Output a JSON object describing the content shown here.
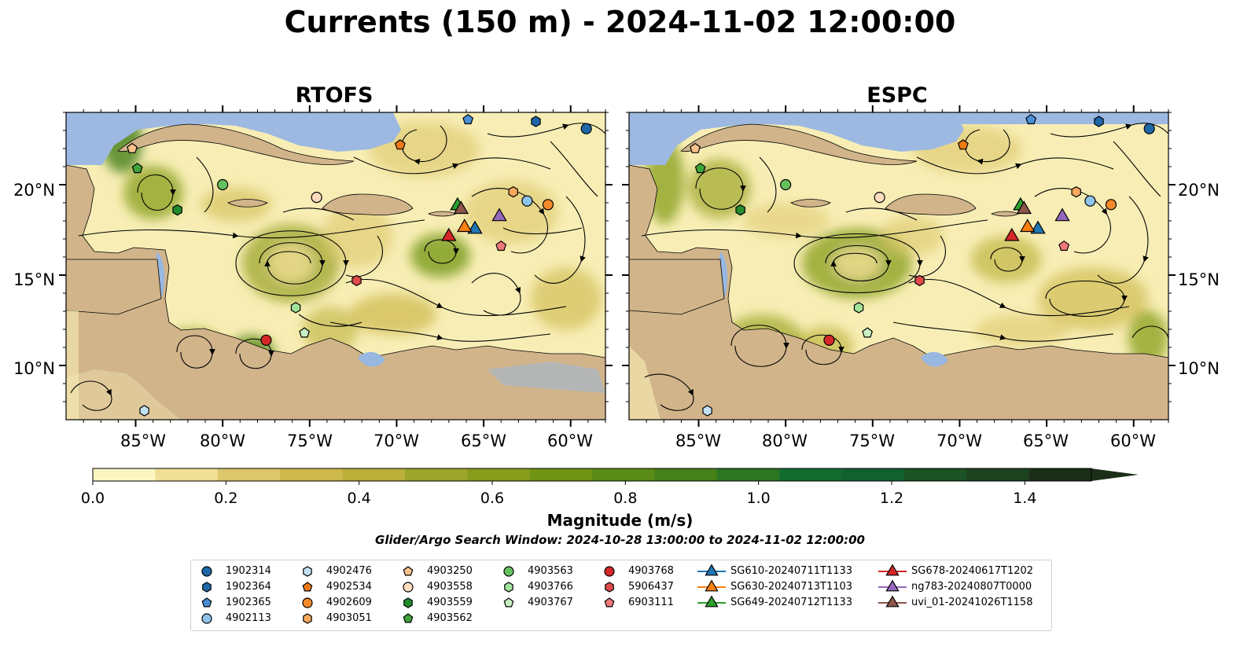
{
  "title": "Currents (150 m) - 2024-11-02 12:00:00",
  "panels": [
    {
      "name": "RTOFS"
    },
    {
      "name": "ESPC"
    }
  ],
  "map": {
    "lon_range": [
      -89,
      -58
    ],
    "lat_range": [
      7,
      24
    ],
    "lon_ticks": [
      "85°W",
      "80°W",
      "75°W",
      "70°W",
      "65°W",
      "60°W"
    ],
    "lat_ticks": [
      "20°N",
      "15°N",
      "10°N"
    ],
    "colors": {
      "ocean_deep": "#9db9e2",
      "land": "#d1b48a",
      "water_shelf": "#98b7e1"
    }
  },
  "colorbar": {
    "label": "Magnitude (m/s)",
    "min": 0.0,
    "max": 1.5,
    "extend": "max",
    "tick_labels": [
      "0.0",
      "0.2",
      "0.4",
      "0.6",
      "0.8",
      "1.0",
      "1.2",
      "1.4"
    ],
    "colors": [
      "#fbf5c2",
      "#f0df96",
      "#dcc76b",
      "#cdb84c",
      "#bbb03a",
      "#9ea52b",
      "#879d1b",
      "#709414",
      "#5a8b17",
      "#468019",
      "#2b7523",
      "#136b2e",
      "#11612f",
      "#1b5225",
      "#1d4220",
      "#1b2f18"
    ]
  },
  "search_window": "Glider/Argo Search Window: 2024-10-28 13:00:00 to 2024-11-02 12:00:00",
  "legend": [
    {
      "label": "1902314",
      "marker": "circle",
      "color": "#1f67a6"
    },
    {
      "label": "1902364",
      "marker": "hexagon",
      "color": "#1f67a6"
    },
    {
      "label": "1902365",
      "marker": "pentagon",
      "color": "#4a8fd4"
    },
    {
      "label": "4902113",
      "marker": "circle",
      "color": "#8fc3ea"
    },
    {
      "label": "4902476",
      "marker": "hexagon",
      "color": "#c3e2f5"
    },
    {
      "label": "4902534",
      "marker": "pentagon",
      "color": "#ee7a14"
    },
    {
      "label": "4902609",
      "marker": "circle",
      "color": "#f58a2a"
    },
    {
      "label": "4903051",
      "marker": "hexagon",
      "color": "#f7a85e"
    },
    {
      "label": "4903250",
      "marker": "pentagon",
      "color": "#f8c08b"
    },
    {
      "label": "4903558",
      "marker": "circle",
      "color": "#fddcc0"
    },
    {
      "label": "4903559",
      "marker": "hexagon",
      "color": "#238b2c"
    },
    {
      "label": "4903562",
      "marker": "pentagon",
      "color": "#3fa33a"
    },
    {
      "label": "4903563",
      "marker": "circle",
      "color": "#66c15f"
    },
    {
      "label": "4903766",
      "marker": "hexagon",
      "color": "#a2e39a"
    },
    {
      "label": "4903767",
      "marker": "pentagon",
      "color": "#c8f0c2"
    },
    {
      "label": "4903768",
      "marker": "circle",
      "color": "#d6282a"
    },
    {
      "label": "5906437",
      "marker": "hexagon",
      "color": "#e04a4a"
    },
    {
      "label": "6903111",
      "marker": "pentagon",
      "color": "#ee7878"
    },
    {
      "label": "SG610-20240711T1133",
      "marker": "triangle",
      "color": "#1f77b4"
    },
    {
      "label": "SG630-20240713T1103",
      "marker": "triangle",
      "color": "#ff7f0e"
    },
    {
      "label": "SG649-20240712T1133",
      "marker": "triangle",
      "color": "#2ca02c"
    },
    {
      "label": "SG678-20240617T1202",
      "marker": "triangle",
      "color": "#d62728"
    },
    {
      "label": "ng783-20240807T0000",
      "marker": "triangle",
      "color": "#9467bd"
    },
    {
      "label": "uvi_01-20241026T1158",
      "marker": "triangle",
      "color": "#8c564b"
    }
  ],
  "floats": [
    {
      "id": "1902314",
      "lon": -59.1,
      "lat": 23.1
    },
    {
      "id": "1902364",
      "lon": -62.0,
      "lat": 23.5
    },
    {
      "id": "1902365",
      "lon": -65.9,
      "lat": 23.6
    },
    {
      "id": "4902113",
      "lon": -62.5,
      "lat": 19.1
    },
    {
      "id": "4902476",
      "lon": -84.5,
      "lat": 7.5
    },
    {
      "id": "4902534",
      "lon": -69.8,
      "lat": 22.2
    },
    {
      "id": "4902609",
      "lon": -61.3,
      "lat": 18.9
    },
    {
      "id": "4903051",
      "lon": -63.3,
      "lat": 19.6
    },
    {
      "id": "4903250",
      "lon": -85.2,
      "lat": 22.0
    },
    {
      "id": "4903558",
      "lon": -74.6,
      "lat": 19.3
    },
    {
      "id": "4903559",
      "lon": -82.6,
      "lat": 18.6
    },
    {
      "id": "4903562",
      "lon": -84.9,
      "lat": 20.9
    },
    {
      "id": "4903563",
      "lon": -80.0,
      "lat": 20.0
    },
    {
      "id": "4903766",
      "lon": -75.8,
      "lat": 13.2
    },
    {
      "id": "4903767",
      "lon": -75.3,
      "lat": 11.8
    },
    {
      "id": "4903768",
      "lon": -77.5,
      "lat": 11.4
    },
    {
      "id": "5906437",
      "lon": -72.3,
      "lat": 14.7
    },
    {
      "id": "6903111",
      "lon": -64.0,
      "lat": 16.6
    }
  ],
  "gliders": [
    {
      "id": "SG610-20240711T1133",
      "lon": -65.5,
      "lat": 17.6
    },
    {
      "id": "SG630-20240713T1103",
      "lon": -66.1,
      "lat": 17.7
    },
    {
      "id": "SG649-20240712T1133",
      "lon": -66.5,
      "lat": 18.9
    },
    {
      "id": "SG678-20240617T1202",
      "lon": -67.0,
      "lat": 17.2
    },
    {
      "id": "ng783-20240807T0000",
      "lon": -64.1,
      "lat": 18.3
    },
    {
      "id": "uvi_01-20241026T1158",
      "lon": -66.3,
      "lat": 18.7
    }
  ]
}
